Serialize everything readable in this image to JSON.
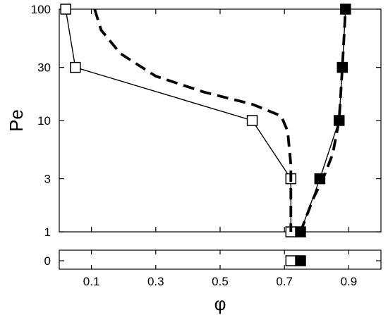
{
  "chart_data": {
    "type": "scatter",
    "xlabel": "φ",
    "ylabel": "Pe",
    "xlim": [
      0.0,
      1.0
    ],
    "x_ticks": [
      0.1,
      0.3,
      0.5,
      0.7,
      0.9
    ],
    "x_tick_labels": [
      "0.1",
      "0.3",
      "0.5",
      "0.7",
      "0.9"
    ],
    "y_scale": "log",
    "ylim": [
      1,
      100
    ],
    "y_ticks": [
      1,
      3,
      10,
      30,
      100
    ],
    "y_tick_labels": [
      "1",
      "3",
      "10",
      "30",
      "100"
    ],
    "zero_panel_tick_label": "0",
    "grid": false,
    "series": [
      {
        "marker": "open-square",
        "line": "solid",
        "color": "#000000",
        "points": [
          {
            "x": 0.02,
            "y": 100
          },
          {
            "x": 0.05,
            "y": 30
          },
          {
            "x": 0.6,
            "y": 10
          },
          {
            "x": 0.72,
            "y": 3
          },
          {
            "x": 0.72,
            "y": 1
          },
          {
            "x": 0.72,
            "y": 0
          }
        ]
      },
      {
        "marker": "filled-square",
        "line": "solid",
        "color": "#000000",
        "points": [
          {
            "x": 0.89,
            "y": 100
          },
          {
            "x": 0.88,
            "y": 30
          },
          {
            "x": 0.87,
            "y": 10
          },
          {
            "x": 0.81,
            "y": 3
          },
          {
            "x": 0.75,
            "y": 1
          },
          {
            "x": 0.75,
            "y": 0
          }
        ]
      },
      {
        "marker": "none",
        "line": "dashed",
        "color": "#000000",
        "points": [
          {
            "x": 0.11,
            "y": 100
          },
          {
            "x": 0.13,
            "y": 65
          },
          {
            "x": 0.19,
            "y": 40
          },
          {
            "x": 0.3,
            "y": 25
          },
          {
            "x": 0.45,
            "y": 18
          },
          {
            "x": 0.6,
            "y": 14
          },
          {
            "x": 0.69,
            "y": 11
          },
          {
            "x": 0.71,
            "y": 8
          },
          {
            "x": 0.72,
            "y": 4
          },
          {
            "x": 0.72,
            "y": 2
          },
          {
            "x": 0.72,
            "y": 1
          }
        ]
      },
      {
        "marker": "none",
        "line": "dashed",
        "color": "#000000",
        "points": [
          {
            "x": 0.75,
            "y": 1
          },
          {
            "x": 0.79,
            "y": 2
          },
          {
            "x": 0.82,
            "y": 3
          },
          {
            "x": 0.85,
            "y": 5
          },
          {
            "x": 0.87,
            "y": 10
          },
          {
            "x": 0.88,
            "y": 30
          },
          {
            "x": 0.89,
            "y": 100
          }
        ]
      }
    ]
  }
}
